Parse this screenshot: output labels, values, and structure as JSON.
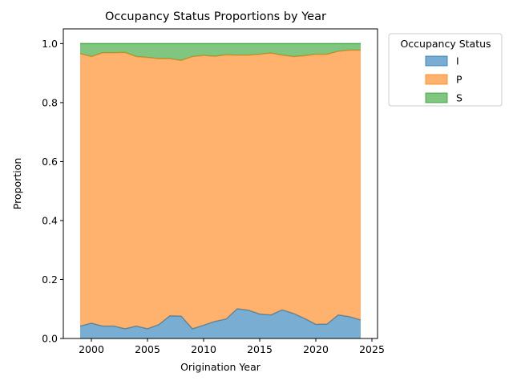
{
  "chart_data": {
    "type": "area",
    "stacked": true,
    "title": "Occupancy Status Proportions by Year",
    "xlabel": "Origination Year",
    "ylabel": "Proportion",
    "xlim": [
      1997.5,
      2025.5
    ],
    "ylim": [
      0.0,
      1.05
    ],
    "xticks": [
      2000,
      2005,
      2010,
      2015,
      2020,
      2025
    ],
    "xtick_labels": [
      "2000",
      "2005",
      "2010",
      "2015",
      "2020",
      "2025"
    ],
    "yticks": [
      0.0,
      0.2,
      0.4,
      0.6,
      0.8,
      1.0
    ],
    "ytick_labels": [
      "0.0",
      "0.2",
      "0.4",
      "0.6",
      "0.8",
      "1.0"
    ],
    "grid": false,
    "legend": {
      "title": "Occupancy Status",
      "placement": "outside-top-right"
    },
    "x": [
      1999,
      2000,
      2001,
      2002,
      2003,
      2004,
      2005,
      2006,
      2007,
      2008,
      2009,
      2010,
      2011,
      2012,
      2013,
      2014,
      2015,
      2016,
      2017,
      2018,
      2019,
      2020,
      2021,
      2022,
      2023,
      2024
    ],
    "series": [
      {
        "name": "I",
        "color": "#1f77b4",
        "values": [
          0.042,
          0.052,
          0.042,
          0.042,
          0.033,
          0.042,
          0.033,
          0.047,
          0.077,
          0.076,
          0.033,
          0.045,
          0.058,
          0.066,
          0.101,
          0.096,
          0.083,
          0.08,
          0.097,
          0.085,
          0.068,
          0.048,
          0.049,
          0.08,
          0.074,
          0.063
        ]
      },
      {
        "name": "P",
        "color": "#ff7f0e",
        "values": [
          0.924,
          0.904,
          0.927,
          0.927,
          0.937,
          0.914,
          0.92,
          0.902,
          0.872,
          0.867,
          0.923,
          0.915,
          0.899,
          0.896,
          0.86,
          0.865,
          0.881,
          0.888,
          0.864,
          0.871,
          0.891,
          0.916,
          0.915,
          0.894,
          0.904,
          0.915
        ]
      },
      {
        "name": "S",
        "color": "#2ca02c",
        "values": [
          0.034,
          0.044,
          0.031,
          0.031,
          0.03,
          0.044,
          0.047,
          0.051,
          0.051,
          0.057,
          0.044,
          0.04,
          0.043,
          0.038,
          0.039,
          0.039,
          0.036,
          0.032,
          0.039,
          0.044,
          0.041,
          0.036,
          0.036,
          0.026,
          0.022,
          0.022
        ]
      }
    ]
  }
}
